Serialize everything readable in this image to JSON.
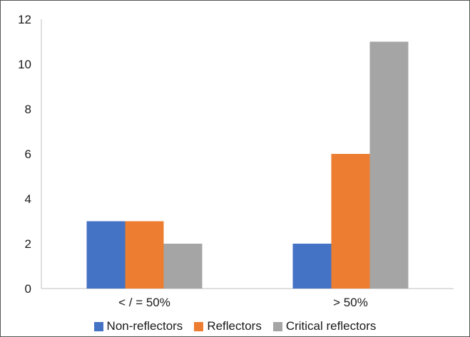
{
  "chart_data": {
    "type": "bar",
    "categories": [
      "< / = 50%",
      "> 50%"
    ],
    "series": [
      {
        "name": "Non-reflectors",
        "values": [
          3,
          2
        ],
        "color": "#4472C4"
      },
      {
        "name": "Reflectors",
        "values": [
          3,
          6
        ],
        "color": "#ED7D31"
      },
      {
        "name": "Critical reflectors",
        "values": [
          2,
          11
        ],
        "color": "#A5A5A5"
      }
    ],
    "title": "",
    "xlabel": "",
    "ylabel": "",
    "ylim": [
      0,
      12
    ],
    "yticks": [
      "0",
      "2",
      "4",
      "6",
      "8",
      "10",
      "12"
    ],
    "grid": false,
    "legend_position": "bottom"
  }
}
